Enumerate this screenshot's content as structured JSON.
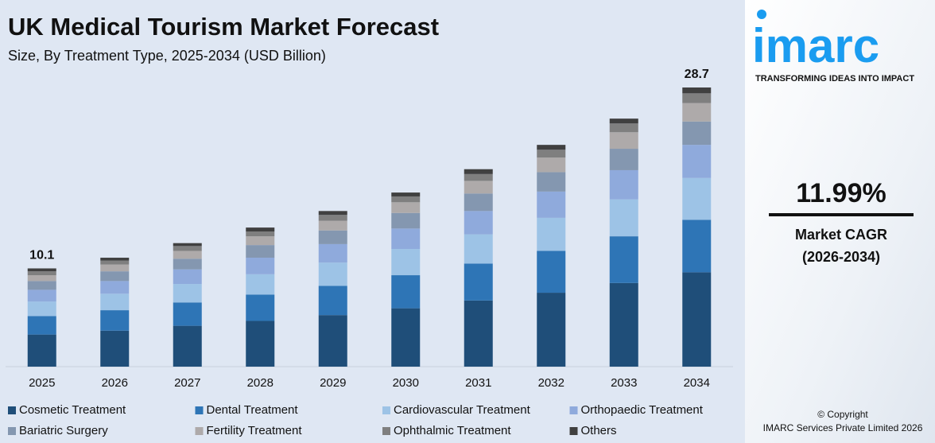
{
  "chart_data": {
    "type": "stacked-bar",
    "title": "UK Medical Tourism Market Forecast",
    "subtitle": "Size, By Treatment Type, 2025-2034 (USD Billion)",
    "categories": [
      "2025",
      "2026",
      "2027",
      "2028",
      "2029",
      "2030",
      "2031",
      "2032",
      "2033",
      "2034"
    ],
    "series": [
      {
        "name": "Cosmetic Treatment",
        "color": "#1f4e79",
        "values": [
          3.3,
          3.7,
          4.2,
          4.7,
          5.3,
          6.0,
          6.8,
          7.6,
          8.6,
          9.7
        ]
      },
      {
        "name": "Dental Treatment",
        "color": "#2e75b6",
        "values": [
          1.9,
          2.1,
          2.4,
          2.7,
          3.0,
          3.4,
          3.8,
          4.3,
          4.8,
          5.4
        ]
      },
      {
        "name": "Cardiovascular Treatment",
        "color": "#9dc3e6",
        "values": [
          1.5,
          1.7,
          1.9,
          2.1,
          2.4,
          2.7,
          3.0,
          3.4,
          3.8,
          4.3
        ]
      },
      {
        "name": "Orthopaedic Treatment",
        "color": "#8faadc",
        "values": [
          1.2,
          1.3,
          1.5,
          1.7,
          1.9,
          2.1,
          2.4,
          2.7,
          3.0,
          3.4
        ]
      },
      {
        "name": "Bariatric Surgery",
        "color": "#8497b0",
        "values": [
          0.9,
          1.0,
          1.1,
          1.3,
          1.4,
          1.6,
          1.8,
          2.0,
          2.2,
          2.4
        ]
      },
      {
        "name": "Fertility Treatment",
        "color": "#aeaaaa",
        "values": [
          0.6,
          0.7,
          0.8,
          0.9,
          1.0,
          1.1,
          1.3,
          1.5,
          1.7,
          1.9
        ]
      },
      {
        "name": "Ophthalmic Treatment",
        "color": "#7f7f7f",
        "values": [
          0.4,
          0.4,
          0.5,
          0.5,
          0.6,
          0.6,
          0.7,
          0.8,
          0.9,
          1.0
        ]
      },
      {
        "name": "Others",
        "color": "#404040",
        "values": [
          0.3,
          0.3,
          0.3,
          0.4,
          0.4,
          0.4,
          0.5,
          0.5,
          0.5,
          0.6
        ]
      }
    ],
    "totals": [
      10.1,
      null,
      null,
      null,
      null,
      null,
      null,
      null,
      null,
      28.7
    ],
    "legend": "bottom"
  },
  "sidebar": {
    "logo": "imarc",
    "tagline": "TRANSFORMING IDEAS INTO IMPACT",
    "cagr": "11.99%",
    "cagr_label": "Market CAGR",
    "cagr_period": "(2026-2034)",
    "copyright": "© Copyright",
    "company": "IMARC Services Private Limited 2026"
  }
}
